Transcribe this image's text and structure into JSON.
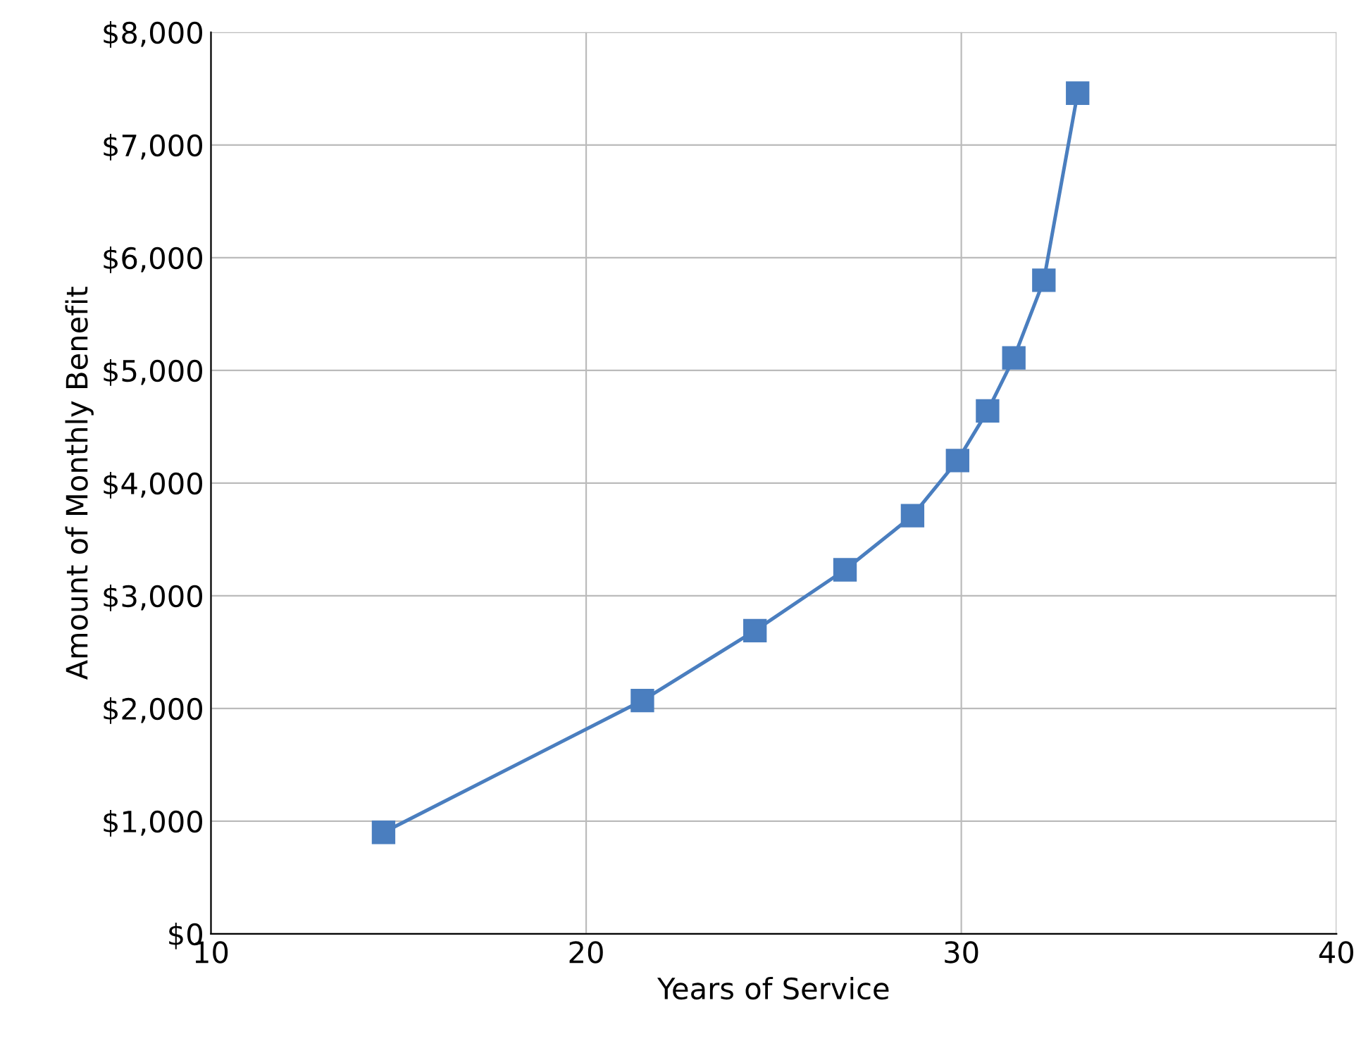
{
  "chart_data": {
    "type": "line",
    "xlabel": "Years of Service",
    "ylabel": "Amount of Monthly Benefit",
    "x": [
      14.6,
      21.5,
      24.5,
      26.9,
      28.7,
      29.9,
      30.7,
      31.4,
      32.2,
      33.1
    ],
    "series": [
      {
        "color": "#4a7ebf",
        "values": [
          900,
          2070,
          2690,
          3230,
          3710,
          4200,
          4640,
          5110,
          5800,
          7460
        ]
      }
    ],
    "xlim": [
      10,
      40
    ],
    "xticks": [
      10,
      20,
      30,
      40
    ],
    "ylim": [
      0,
      8000
    ],
    "yticks": [
      {
        "value": 0,
        "label": "$0"
      },
      {
        "value": 1000,
        "label": "$1,000"
      },
      {
        "value": 2000,
        "label": "$2,000"
      },
      {
        "value": 3000,
        "label": "$3,000"
      },
      {
        "value": 4000,
        "label": "$4,000"
      },
      {
        "value": 5000,
        "label": "$5,000"
      },
      {
        "value": 6000,
        "label": "$6,000"
      },
      {
        "value": 7000,
        "label": "$7,000"
      },
      {
        "value": 8000,
        "label": "$8,000"
      }
    ],
    "grid": true,
    "marker": "square",
    "line_style": "solid"
  }
}
